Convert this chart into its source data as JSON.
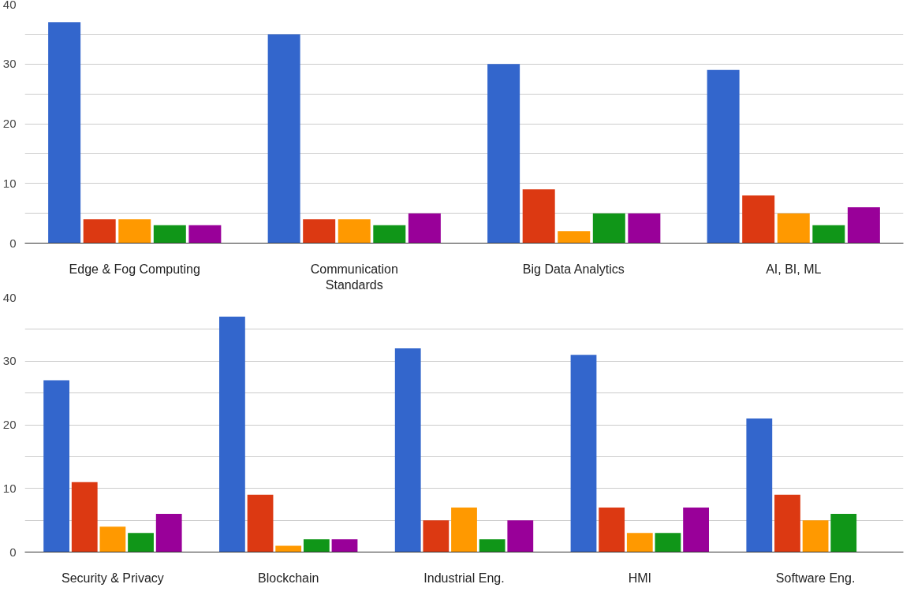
{
  "chart_data": [
    {
      "type": "bar",
      "categories": [
        "Edge & Fog Computing",
        "Communication Standards",
        "Big Data Analytics",
        "AI, BI, ML"
      ],
      "series": [
        {
          "color": "#3366cc",
          "values": [
            37,
            35,
            30,
            29
          ]
        },
        {
          "color": "#dc3912",
          "values": [
            4,
            4,
            9,
            8
          ]
        },
        {
          "color": "#ff9900",
          "values": [
            4,
            4,
            2,
            5
          ]
        },
        {
          "color": "#109618",
          "values": [
            3,
            3,
            5,
            3
          ]
        },
        {
          "color": "#990099",
          "values": [
            3,
            5,
            5,
            6
          ]
        }
      ],
      "ylim": [
        0,
        40
      ],
      "yticks": [
        0,
        {
          "value": 5,
          "label": null
        },
        10,
        {
          "value": 15,
          "label": null
        },
        20,
        {
          "value": 25,
          "label": null
        },
        30,
        {
          "value": 35,
          "label": null
        },
        40
      ],
      "grid": "y"
    },
    {
      "type": "bar",
      "categories": [
        "Security & Privacy",
        "Blockchain",
        "Industrial Eng.",
        "HMI",
        "Software Eng."
      ],
      "series": [
        {
          "color": "#3366cc",
          "values": [
            27,
            37,
            32,
            31,
            21
          ]
        },
        {
          "color": "#dc3912",
          "values": [
            11,
            9,
            5,
            7,
            9
          ]
        },
        {
          "color": "#ff9900",
          "values": [
            4,
            1,
            7,
            3,
            5
          ]
        },
        {
          "color": "#109618",
          "values": [
            3,
            2,
            2,
            3,
            6
          ]
        },
        {
          "color": "#990099",
          "values": [
            6,
            2,
            5,
            7,
            null
          ]
        }
      ],
      "ylim": [
        0,
        40
      ],
      "yticks": [
        0,
        {
          "value": 5,
          "label": null
        },
        10,
        {
          "value": 15,
          "label": null
        },
        20,
        {
          "value": 25,
          "label": null
        },
        30,
        {
          "value": 35,
          "label": null
        },
        40
      ],
      "grid": "y"
    }
  ]
}
